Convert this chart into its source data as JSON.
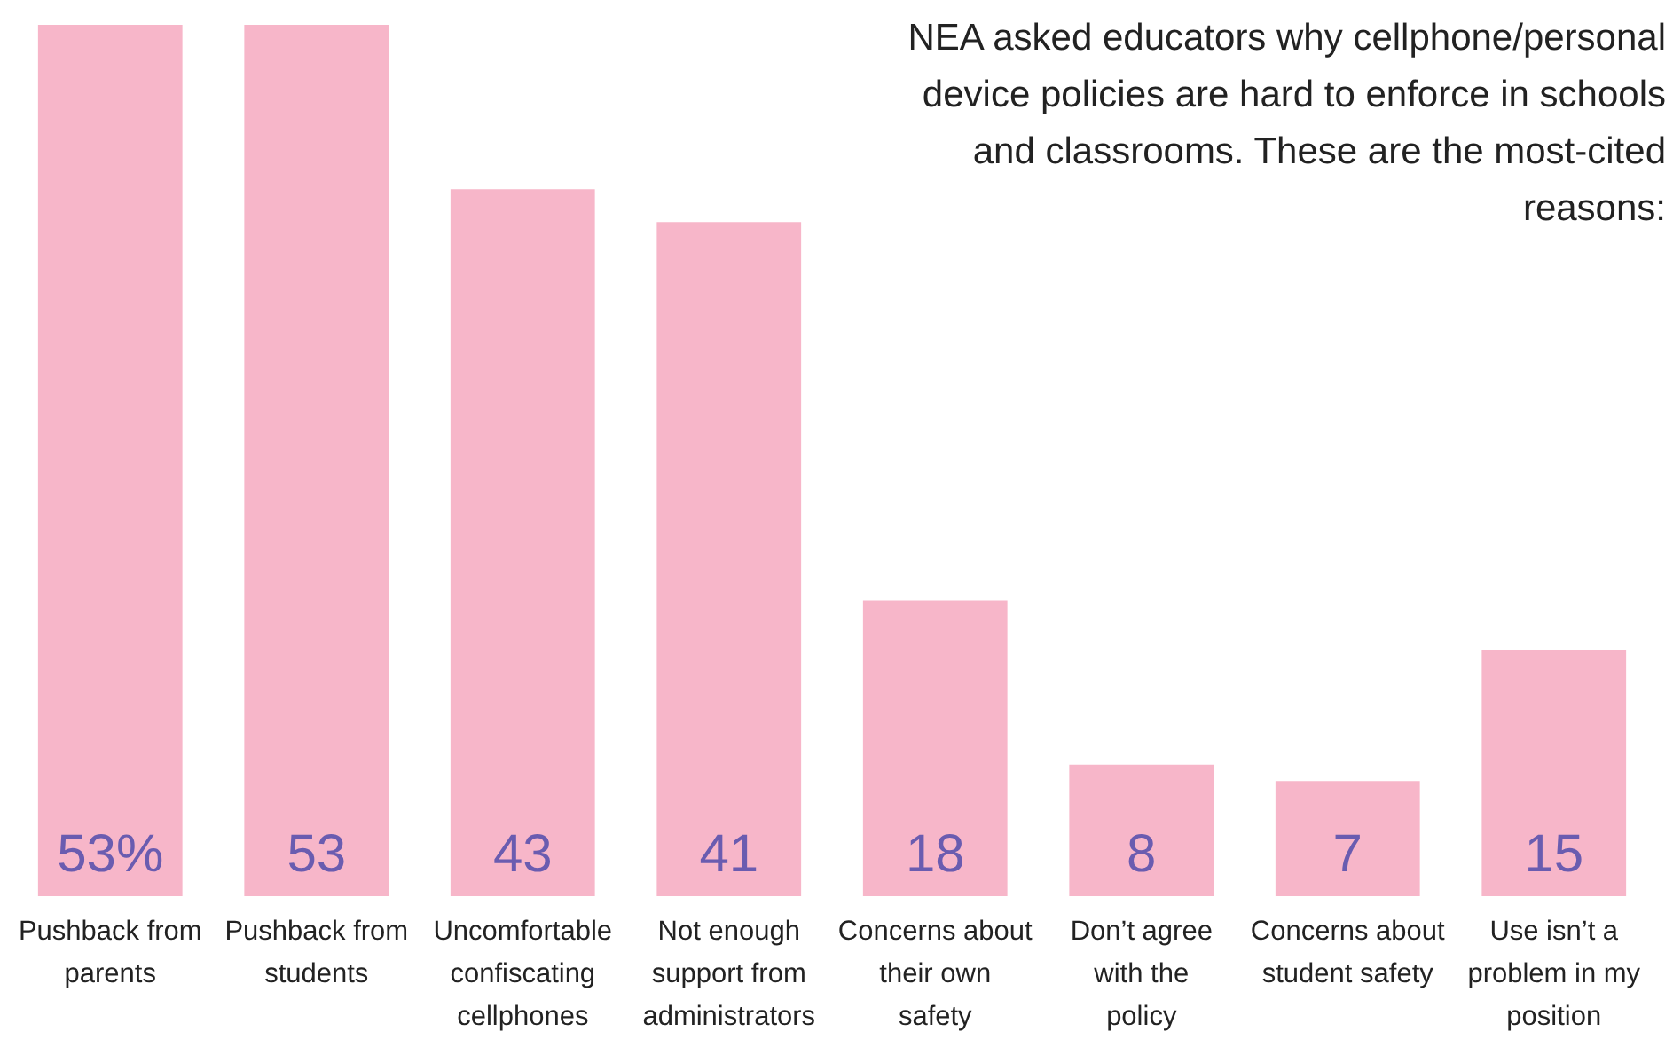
{
  "chart_data": {
    "type": "bar",
    "title": "NEA asked educators why cellphone/personal device policies are hard to enforce in schools and classrooms. These are the most-cited reasons:",
    "categories": [
      "Pushback from parents",
      "Pushback from students",
      "Uncomfortable confiscating cellphones",
      "Not enough support from administrators",
      "Concerns about their own safety",
      "Don’t agree with the policy",
      "Concerns about student safety",
      "Use isn’t a problem in my position"
    ],
    "values": [
      53,
      53,
      43,
      41,
      18,
      8,
      7,
      15
    ],
    "value_labels": [
      "53%",
      "53",
      "43",
      "41",
      "18",
      "8",
      "7",
      "15"
    ],
    "color": "#f7b6c9"
  }
}
